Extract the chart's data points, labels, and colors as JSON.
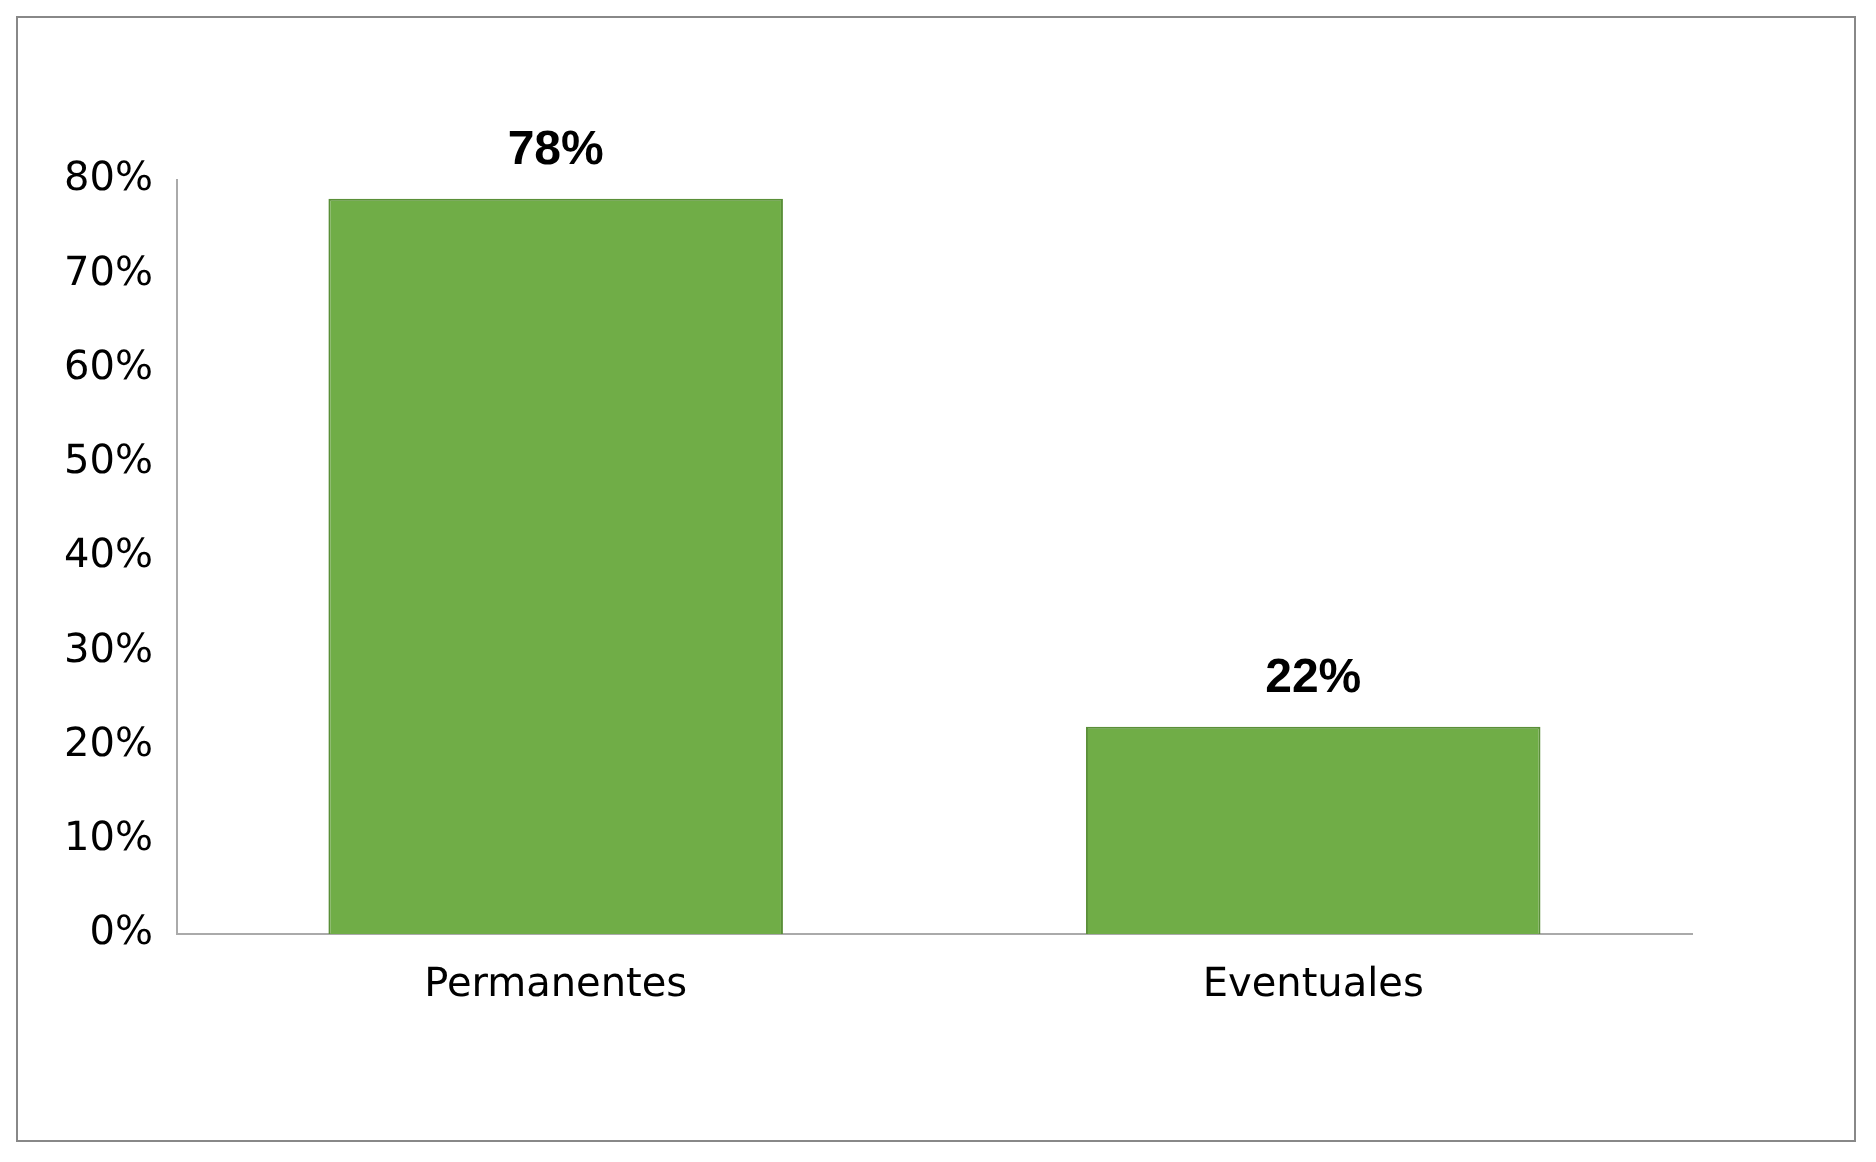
{
  "chart_data": {
    "type": "bar",
    "categories": [
      "Permanentes",
      "Eventuales"
    ],
    "values": [
      78,
      22
    ],
    "color": "#70ad47",
    "value_labels": [
      "78%",
      "22%"
    ],
    "ylim": [
      0,
      80
    ],
    "yticks": [
      {
        "value": 0,
        "label": "0%"
      },
      {
        "value": 10,
        "label": "10%"
      },
      {
        "value": 20,
        "label": "20%"
      },
      {
        "value": 30,
        "label": "30%"
      },
      {
        "value": 40,
        "label": "40%"
      },
      {
        "value": 50,
        "label": "50%"
      },
      {
        "value": 60,
        "label": "60%"
      },
      {
        "value": 70,
        "label": "70%"
      },
      {
        "value": 80,
        "label": "80%"
      }
    ],
    "grid": false,
    "legend": false
  }
}
